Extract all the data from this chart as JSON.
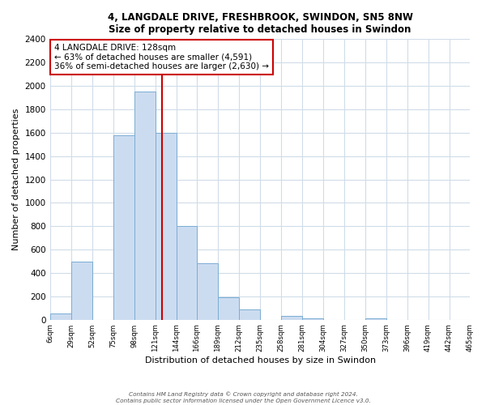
{
  "title": "4, LANGDALE DRIVE, FRESHBROOK, SWINDON, SN5 8NW",
  "subtitle": "Size of property relative to detached houses in Swindon",
  "xlabel": "Distribution of detached houses by size in Swindon",
  "ylabel": "Number of detached properties",
  "bin_labels": [
    "6sqm",
    "29sqm",
    "52sqm",
    "75sqm",
    "98sqm",
    "121sqm",
    "144sqm",
    "166sqm",
    "189sqm",
    "212sqm",
    "235sqm",
    "258sqm",
    "281sqm",
    "304sqm",
    "327sqm",
    "350sqm",
    "373sqm",
    "396sqm",
    "419sqm",
    "442sqm",
    "465sqm"
  ],
  "bin_edges": [
    6,
    29,
    52,
    75,
    98,
    121,
    144,
    166,
    189,
    212,
    235,
    258,
    281,
    304,
    327,
    350,
    373,
    396,
    419,
    442,
    465
  ],
  "bar_heights": [
    50,
    500,
    0,
    1580,
    1950,
    1600,
    800,
    480,
    190,
    90,
    0,
    30,
    15,
    0,
    0,
    10,
    0,
    0,
    0,
    0
  ],
  "bar_color": "#ccdcf0",
  "bar_edgecolor": "#7aadd4",
  "vline_x": 128,
  "vline_color": "#cc0000",
  "ylim": [
    0,
    2400
  ],
  "yticks": [
    0,
    200,
    400,
    600,
    800,
    1000,
    1200,
    1400,
    1600,
    1800,
    2000,
    2200,
    2400
  ],
  "annotation_title": "4 LANGDALE DRIVE: 128sqm",
  "annotation_line1": "← 63% of detached houses are smaller (4,591)",
  "annotation_line2": "36% of semi-detached houses are larger (2,630) →",
  "annotation_box_color": "#ffffff",
  "annotation_box_edgecolor": "#cc0000",
  "footer1": "Contains HM Land Registry data © Crown copyright and database right 2024.",
  "footer2": "Contains public sector information licensed under the Open Government Licence v3.0.",
  "background_color": "#ffffff",
  "grid_color": "#d0dce8"
}
